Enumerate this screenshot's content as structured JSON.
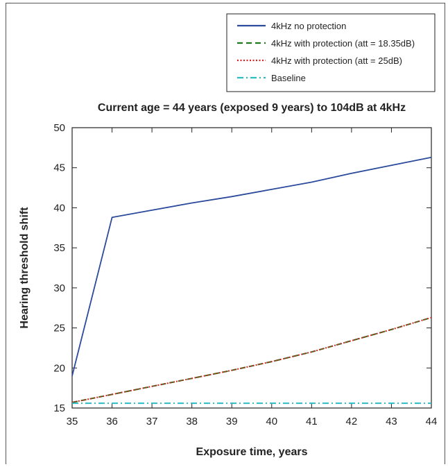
{
  "chart_data": {
    "type": "line",
    "title": "Current age = 44 years (exposed 9 years) to 104dB at 4kHz",
    "xlabel": "Exposure time, years",
    "ylabel": "Hearing threshold shift",
    "xlim": [
      35,
      44
    ],
    "ylim": [
      15,
      50
    ],
    "x_ticks": [
      35,
      36,
      37,
      38,
      39,
      40,
      41,
      42,
      43,
      44
    ],
    "y_ticks": [
      15,
      20,
      25,
      30,
      35,
      40,
      45,
      50
    ],
    "grid": false,
    "legend_position": "top-right",
    "series": [
      {
        "name": "4kHz no protection",
        "color": "#2b4a9c",
        "style": "solid",
        "x": [
          35,
          36,
          37,
          38,
          39,
          40,
          41,
          42,
          43,
          44
        ],
        "y": [
          19.0,
          38.8,
          39.7,
          40.6,
          41.4,
          42.3,
          43.2,
          44.3,
          45.3,
          46.3
        ]
      },
      {
        "name": "4kHz with protection (att = 18.35dB)",
        "color": "#1e7a1e",
        "style": "dashed",
        "x": [
          35,
          36,
          37,
          38,
          39,
          40,
          41,
          42,
          43,
          44
        ],
        "y": [
          15.7,
          16.7,
          17.7,
          18.7,
          19.7,
          20.8,
          22.0,
          23.4,
          24.8,
          26.3
        ]
      },
      {
        "name": "4kHz with protection (att = 25dB)",
        "color": "#d62020",
        "style": "dotted",
        "x": [
          35,
          36,
          37,
          38,
          39,
          40,
          41,
          42,
          43,
          44
        ],
        "y": [
          15.7,
          16.7,
          17.7,
          18.7,
          19.7,
          20.8,
          22.0,
          23.4,
          24.8,
          26.3
        ]
      },
      {
        "name": "Baseline",
        "color": "#2bbcc4",
        "style": "dashdot",
        "x": [
          35,
          44
        ],
        "y": [
          15.6,
          15.6
        ]
      }
    ]
  }
}
